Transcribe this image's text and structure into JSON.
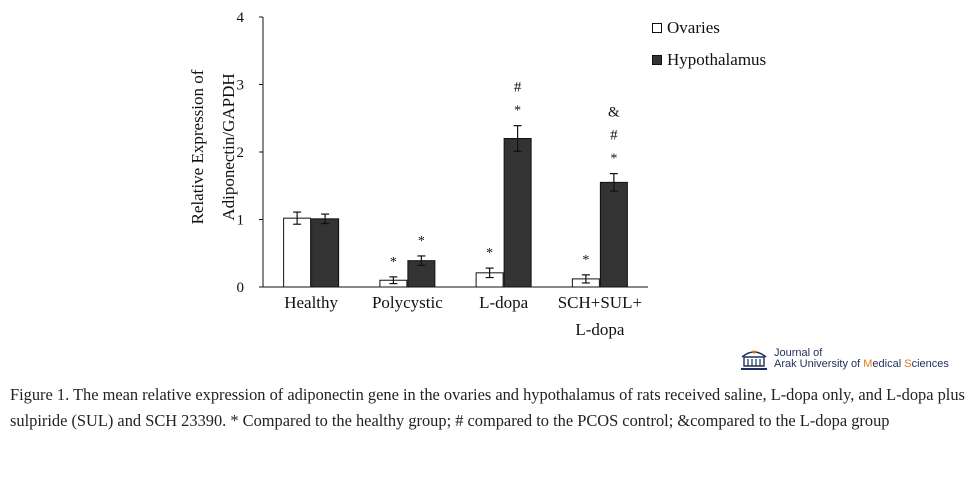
{
  "chart_data": {
    "type": "bar",
    "ylabel_line1": "Relative Expression of",
    "ylabel_line2": "Adiponectin/GAPDH",
    "ylim": [
      0,
      4
    ],
    "yticks": [
      "0",
      "1",
      "2",
      "3",
      "4"
    ],
    "categories": [
      [
        "Healthy"
      ],
      [
        "Polycystic"
      ],
      [
        "L-dopa"
      ],
      [
        "SCH+SUL+",
        "L-dopa"
      ]
    ],
    "series": [
      {
        "name": "Ovaries",
        "fill": "#ffffff",
        "values": [
          1.02,
          0.1,
          0.21,
          0.12
        ],
        "errors": [
          0.09,
          0.05,
          0.07,
          0.06
        ],
        "annotations": [
          [],
          [
            "*"
          ],
          [
            "*"
          ],
          [
            "*"
          ]
        ]
      },
      {
        "name": "Hypothalamus",
        "fill": "#333333",
        "values": [
          1.01,
          0.39,
          2.2,
          1.55
        ],
        "errors": [
          0.07,
          0.07,
          0.19,
          0.13
        ],
        "annotations": [
          [],
          [
            "*"
          ],
          [
            "*",
            "#"
          ],
          [
            "*",
            "#",
            "&"
          ]
        ]
      }
    ],
    "grid": false,
    "legend_position": "top-right"
  },
  "logo": {
    "line1": "Journal of",
    "line2_part1": "Arak University of ",
    "line2_highlight1": "M",
    "line2_part2": "edical ",
    "line2_highlight2": "S",
    "line2_part3": "ciences"
  },
  "caption": "Figure 1. The mean relative expression of adiponectin gene in the ovaries and hypothalamus of rats received saline, L-dopa only, and L-dopa plus sulpiride (SUL) and SCH 23390. * Compared to the healthy group; # compared to the PCOS control; &compared to the L-dopa group"
}
